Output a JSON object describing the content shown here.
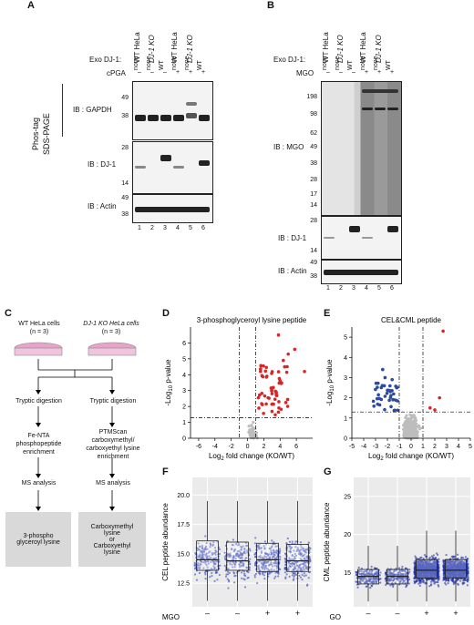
{
  "panels": {
    "A": "A",
    "B": "B",
    "C": "C",
    "D": "D",
    "E": "E",
    "F": "F",
    "G": "G"
  },
  "panelA": {
    "columns": [
      "WT HeLa",
      "DJ-1 KO",
      "WT HeLa",
      "DJ-1 KO"
    ],
    "rows": {
      "exo_label": "Exo DJ-1:",
      "exo": [
        "none",
        "none",
        "WT",
        "none",
        "none",
        "WT"
      ],
      "cpga_label": "cPGA",
      "cpga": [
        "–",
        "–",
        "–",
        "+",
        "+",
        "+"
      ]
    },
    "side_label_1": "Phos-tag",
    "side_label_2": "SDS-PAGE",
    "blots": [
      {
        "label": "IB : GAPDH",
        "markers": [
          "49",
          "38"
        ]
      },
      {
        "label": "IB : DJ-1",
        "markers": [
          "28",
          "14"
        ]
      },
      {
        "label": "IB : Actin",
        "markers": [
          "49",
          "38"
        ]
      }
    ],
    "lanes": [
      "1",
      "2",
      "3",
      "4",
      "5",
      "6"
    ]
  },
  "panelB": {
    "columns": [
      "WT HeLa",
      "DJ-1 KO",
      "WT HeLa",
      "DJ-1 KO"
    ],
    "rows": {
      "exo_label": "Exo DJ-1:",
      "exo": [
        "none",
        "none",
        "WT",
        "none",
        "none",
        "WT"
      ],
      "mgo_label": "MGO",
      "mgo": [
        "–",
        "–",
        "–",
        "+",
        "+",
        "+"
      ]
    },
    "blots": [
      {
        "label": "IB : MGO",
        "markers": [
          "198",
          "98",
          "62",
          "49",
          "38",
          "28",
          "17",
          "14"
        ]
      },
      {
        "label": "IB : DJ-1",
        "markers": [
          "28",
          "14"
        ]
      },
      {
        "label": "IB : Actin",
        "markers": [
          "49",
          "38"
        ]
      }
    ],
    "lanes": [
      "1",
      "2",
      "3",
      "4",
      "5",
      "6"
    ]
  },
  "panelC": {
    "left_title": "WT HeLa cells",
    "left_n": "(n = 3)",
    "right_title": "DJ-1 KO HeLa cells",
    "right_n": "(n = 3)",
    "left_steps": [
      "Tryptic digestion",
      "Fe-NTA phosphopeptide enrichment",
      "MS analysis"
    ],
    "right_steps": [
      "Tryptic digestion",
      "PTMScan carboxymethyl/ carboxyethyl lysine enrichment",
      "MS analysis"
    ],
    "left_result": "3-phospho glyceroyl lysine",
    "right_result_1": "Carboxymethyl lysine",
    "right_result_or": "or",
    "right_result_2": "Carboxyethyl lysine"
  },
  "chart_data": [
    {
      "type": "scatter",
      "title": "3-phosphoglyceroyl lysine peptide",
      "xlabel": "Log2 fold change (KO/WT)",
      "ylabel": "-Log10 p-value",
      "xticks": [
        "-6",
        "-4",
        "-2",
        "0",
        "2",
        "4",
        "6"
      ],
      "yticks": [
        "0",
        "1",
        "2",
        "3",
        "4",
        "5",
        "6"
      ],
      "xlim": [
        -7,
        8
      ],
      "ylim": [
        0,
        7
      ],
      "grid": false,
      "colors": {
        "significant": "#d62728",
        "other": "#bdbdbd"
      },
      "thresholds": {
        "x": [
          -1,
          1
        ],
        "y": 1.3
      }
    },
    {
      "type": "scatter",
      "title": "CEL&CML peptide",
      "xlabel": "Log2 fold change (KO/WT)",
      "ylabel": "-Log10 p-value",
      "xticks": [
        "-5",
        "-4",
        "-3",
        "-2",
        "-1",
        "0",
        "1",
        "2",
        "3",
        "4",
        "5"
      ],
      "yticks": [
        "0",
        "1",
        "2",
        "3",
        "4",
        "5"
      ],
      "xlim": [
        -5,
        5
      ],
      "ylim": [
        0,
        5.5
      ],
      "grid": false,
      "colors": {
        "up": "#d62728",
        "down": "#2b4aa0",
        "other": "#bdbdbd"
      },
      "thresholds": {
        "x": [
          -1,
          1
        ],
        "y": 1.3
      }
    },
    {
      "type": "box",
      "ylabel": "CEL peptide abundance",
      "xlabel": "MGO",
      "groups": [
        "–",
        "–",
        "+",
        "+"
      ],
      "yticks": [
        "12.5",
        "15.0",
        "17.5",
        "20.0"
      ],
      "ylim": [
        10.5,
        21.5
      ],
      "medians": [
        14.5,
        14.4,
        14.5,
        14.4
      ],
      "q1": [
        13.6,
        13.6,
        13.5,
        13.5
      ],
      "q3": [
        16.1,
        16.0,
        15.9,
        15.8
      ],
      "whisk_low": [
        11.0,
        11.0,
        11.0,
        11.0
      ],
      "whisk_high": [
        19.5,
        19.5,
        19.5,
        19.5
      ],
      "point_color": "#3b4bb8",
      "grid": true
    },
    {
      "type": "box",
      "ylabel": "CML peptide abundance",
      "xlabel": "GO",
      "groups": [
        "–",
        "–",
        "+",
        "+"
      ],
      "yticks": [
        "15",
        "20",
        "25"
      ],
      "ylim": [
        10.5,
        27.5
      ],
      "medians": [
        14.5,
        14.5,
        15.3,
        15.3
      ],
      "q1": [
        13.5,
        13.5,
        14.3,
        14.3
      ],
      "q3": [
        15.4,
        15.4,
        16.7,
        16.7
      ],
      "whisk_low": [
        11.2,
        11.2,
        11.2,
        11.2
      ],
      "whisk_high": [
        18.5,
        18.5,
        20.5,
        20.5
      ],
      "point_color": "#2233aa",
      "grid": true
    }
  ]
}
